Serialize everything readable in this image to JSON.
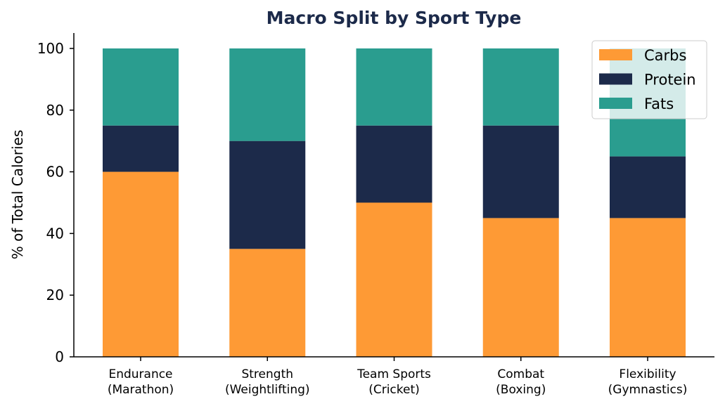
{
  "chart_data": {
    "type": "bar",
    "stacked": true,
    "title": "Macro Split by Sport Type",
    "xlabel": "",
    "ylabel": "% of Total Calories",
    "ylim": [
      0,
      105
    ],
    "yticks": [
      "0",
      "20",
      "40",
      "60",
      "80",
      "100"
    ],
    "categories": [
      [
        "Endurance",
        "(Marathon)"
      ],
      [
        "Strength",
        "(Weightlifting)"
      ],
      [
        "Team Sports",
        "(Cricket)"
      ],
      [
        "Combat",
        "(Boxing)"
      ],
      [
        "Flexibility",
        "(Gymnastics)"
      ]
    ],
    "series": [
      {
        "name": "Carbs",
        "color": "#fe9a35",
        "values": [
          60,
          35,
          50,
          45,
          45
        ]
      },
      {
        "name": "Protein",
        "color": "#1c2a4a",
        "values": [
          15,
          35,
          25,
          30,
          20
        ]
      },
      {
        "name": "Fats",
        "color": "#2a9d8f",
        "values": [
          25,
          30,
          25,
          25,
          35
        ]
      }
    ],
    "legend_position": "top-right",
    "grid": false
  }
}
